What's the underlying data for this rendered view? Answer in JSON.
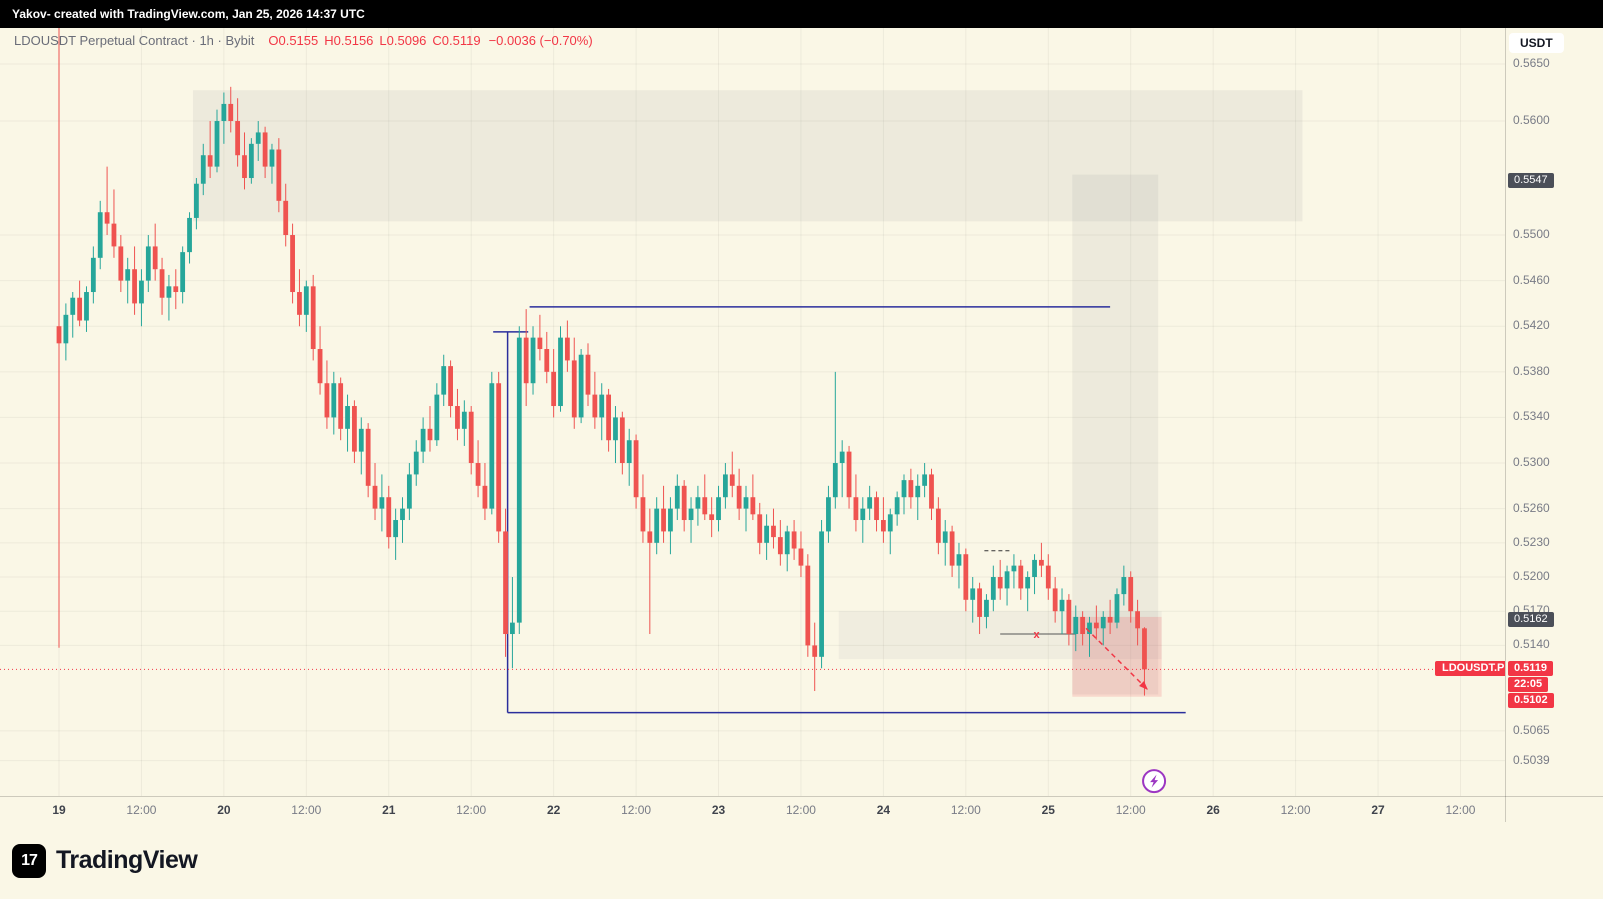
{
  "topbar": {
    "text": "Yakov- created with TradingView.com, Jan 25, 2026 14:37 UTC"
  },
  "legend": {
    "symbol_line": "LDOUSDT Perpetual Contract · 1h · Bybit",
    "o_label": "O",
    "o_value": "0.5155",
    "h_label": "H",
    "h_value": "0.5156",
    "l_label": "L",
    "l_value": "0.5096",
    "c_label": "C",
    "c_value": "0.5119",
    "change": "−0.0036 (−0.70%)"
  },
  "axis": {
    "currency": "USDT",
    "symbol_label": "LDOUSDT.P",
    "countdown": "22:05"
  },
  "footer": {
    "brand": "TradingView",
    "logo_glyph": "17"
  },
  "colors": {
    "background": "#faf7e6",
    "topbar_bg": "#000000",
    "up": "#26a69a",
    "down": "#ef5350",
    "accent_red": "#f23645",
    "blue_line": "#2a2e9c",
    "axis_text": "#787b86",
    "dark_badge_bg": "#4b4f58",
    "text_dark": "#131722",
    "purple": "#9c36c2",
    "grid": "rgba(0,0,0,0.05)"
  },
  "chart_data": {
    "type": "candlestick",
    "symbol": "LDOUSDT",
    "exchange": "Bybit",
    "interval": "1h",
    "price_range_visible": [
      0.5039,
      0.565
    ],
    "time_ticks": [
      "19",
      "12:00",
      "20",
      "12:00",
      "21",
      "12:00",
      "22",
      "12:00",
      "23",
      "12:00",
      "24",
      "12:00",
      "25",
      "12:00",
      "26",
      "12:00",
      "27",
      "12:00"
    ],
    "price_ticks": [
      0.565,
      0.56,
      0.55,
      0.546,
      0.542,
      0.538,
      0.534,
      0.53,
      0.526,
      0.523,
      0.52,
      0.517,
      0.514,
      0.5065,
      0.5039
    ],
    "badge_ticks": [
      0.5547,
      0.5162
    ],
    "last_price": 0.5119,
    "alert_price": 0.5102,
    "candles": [
      [
        0.542,
        0.569,
        0.5138,
        0.5405
      ],
      [
        0.5405,
        0.544,
        0.539,
        0.543
      ],
      [
        0.543,
        0.545,
        0.541,
        0.5445
      ],
      [
        0.5445,
        0.546,
        0.542,
        0.5425
      ],
      [
        0.5425,
        0.5455,
        0.5415,
        0.545
      ],
      [
        0.545,
        0.549,
        0.544,
        0.548
      ],
      [
        0.548,
        0.553,
        0.547,
        0.552
      ],
      [
        0.552,
        0.556,
        0.55,
        0.551
      ],
      [
        0.551,
        0.554,
        0.548,
        0.549
      ],
      [
        0.549,
        0.55,
        0.545,
        0.546
      ],
      [
        0.546,
        0.548,
        0.544,
        0.547
      ],
      [
        0.547,
        0.549,
        0.543,
        0.544
      ],
      [
        0.544,
        0.547,
        0.542,
        0.546
      ],
      [
        0.546,
        0.55,
        0.545,
        0.549
      ],
      [
        0.549,
        0.551,
        0.546,
        0.547
      ],
      [
        0.547,
        0.548,
        0.543,
        0.5445
      ],
      [
        0.5445,
        0.5465,
        0.5425,
        0.5455
      ],
      [
        0.5455,
        0.547,
        0.5435,
        0.545
      ],
      [
        0.545,
        0.549,
        0.544,
        0.5485
      ],
      [
        0.5485,
        0.552,
        0.5475,
        0.5515
      ],
      [
        0.5515,
        0.555,
        0.5505,
        0.5545
      ],
      [
        0.5545,
        0.558,
        0.5535,
        0.557
      ],
      [
        0.557,
        0.56,
        0.555,
        0.556
      ],
      [
        0.556,
        0.561,
        0.5555,
        0.56
      ],
      [
        0.56,
        0.5625,
        0.558,
        0.5615
      ],
      [
        0.5615,
        0.563,
        0.559,
        0.56
      ],
      [
        0.56,
        0.562,
        0.556,
        0.557
      ],
      [
        0.557,
        0.559,
        0.554,
        0.555
      ],
      [
        0.555,
        0.5585,
        0.5545,
        0.558
      ],
      [
        0.558,
        0.56,
        0.5565,
        0.559
      ],
      [
        0.559,
        0.5595,
        0.555,
        0.556
      ],
      [
        0.556,
        0.558,
        0.5545,
        0.5575
      ],
      [
        0.5575,
        0.5585,
        0.552,
        0.553
      ],
      [
        0.553,
        0.5545,
        0.549,
        0.55
      ],
      [
        0.55,
        0.551,
        0.544,
        0.545
      ],
      [
        0.545,
        0.547,
        0.542,
        0.543
      ],
      [
        0.543,
        0.546,
        0.5415,
        0.5455
      ],
      [
        0.5455,
        0.5465,
        0.539,
        0.54
      ],
      [
        0.54,
        0.542,
        0.536,
        0.537
      ],
      [
        0.537,
        0.539,
        0.533,
        0.534
      ],
      [
        0.534,
        0.538,
        0.5325,
        0.537
      ],
      [
        0.537,
        0.5375,
        0.532,
        0.533
      ],
      [
        0.533,
        0.536,
        0.531,
        0.535
      ],
      [
        0.535,
        0.5355,
        0.53,
        0.531
      ],
      [
        0.531,
        0.534,
        0.529,
        0.533
      ],
      [
        0.533,
        0.5335,
        0.527,
        0.528
      ],
      [
        0.528,
        0.53,
        0.525,
        0.526
      ],
      [
        0.526,
        0.529,
        0.524,
        0.527
      ],
      [
        0.527,
        0.528,
        0.5225,
        0.5235
      ],
      [
        0.5235,
        0.526,
        0.5215,
        0.525
      ],
      [
        0.525,
        0.527,
        0.523,
        0.526
      ],
      [
        0.526,
        0.53,
        0.525,
        0.529
      ],
      [
        0.529,
        0.532,
        0.528,
        0.531
      ],
      [
        0.531,
        0.534,
        0.53,
        0.533
      ],
      [
        0.533,
        0.535,
        0.531,
        0.532
      ],
      [
        0.532,
        0.537,
        0.5315,
        0.536
      ],
      [
        0.536,
        0.5395,
        0.535,
        0.5385
      ],
      [
        0.5385,
        0.539,
        0.534,
        0.535
      ],
      [
        0.535,
        0.5365,
        0.532,
        0.533
      ],
      [
        0.533,
        0.5355,
        0.5315,
        0.5345
      ],
      [
        0.5345,
        0.535,
        0.529,
        0.53
      ],
      [
        0.53,
        0.532,
        0.527,
        0.528
      ],
      [
        0.528,
        0.53,
        0.525,
        0.526
      ],
      [
        0.526,
        0.538,
        0.5255,
        0.537
      ],
      [
        0.537,
        0.538,
        0.523,
        0.524
      ],
      [
        0.524,
        0.526,
        0.513,
        0.515
      ],
      [
        0.515,
        0.52,
        0.512,
        0.516
      ],
      [
        0.516,
        0.542,
        0.515,
        0.541
      ],
      [
        0.541,
        0.5435,
        0.535,
        0.537
      ],
      [
        0.537,
        0.542,
        0.536,
        0.541
      ],
      [
        0.541,
        0.543,
        0.539,
        0.54
      ],
      [
        0.54,
        0.5415,
        0.537,
        0.538
      ],
      [
        0.538,
        0.54,
        0.534,
        0.535
      ],
      [
        0.535,
        0.542,
        0.5345,
        0.541
      ],
      [
        0.541,
        0.5425,
        0.538,
        0.539
      ],
      [
        0.539,
        0.541,
        0.533,
        0.534
      ],
      [
        0.534,
        0.54,
        0.5335,
        0.5395
      ],
      [
        0.5395,
        0.5405,
        0.535,
        0.536
      ],
      [
        0.536,
        0.538,
        0.533,
        0.534
      ],
      [
        0.534,
        0.537,
        0.532,
        0.536
      ],
      [
        0.536,
        0.5365,
        0.531,
        0.532
      ],
      [
        0.532,
        0.535,
        0.53,
        0.534
      ],
      [
        0.534,
        0.5345,
        0.529,
        0.53
      ],
      [
        0.53,
        0.533,
        0.528,
        0.532
      ],
      [
        0.532,
        0.5325,
        0.526,
        0.527
      ],
      [
        0.527,
        0.529,
        0.523,
        0.524
      ],
      [
        0.524,
        0.526,
        0.515,
        0.523
      ],
      [
        0.523,
        0.527,
        0.522,
        0.526
      ],
      [
        0.526,
        0.528,
        0.523,
        0.524
      ],
      [
        0.524,
        0.527,
        0.522,
        0.526
      ],
      [
        0.526,
        0.529,
        0.525,
        0.528
      ],
      [
        0.528,
        0.5285,
        0.524,
        0.525
      ],
      [
        0.525,
        0.527,
        0.523,
        0.526
      ],
      [
        0.526,
        0.528,
        0.5245,
        0.527
      ],
      [
        0.527,
        0.529,
        0.525,
        0.5255
      ],
      [
        0.5255,
        0.527,
        0.5235,
        0.525
      ],
      [
        0.525,
        0.528,
        0.524,
        0.527
      ],
      [
        0.527,
        0.53,
        0.526,
        0.529
      ],
      [
        0.529,
        0.531,
        0.527,
        0.528
      ],
      [
        0.528,
        0.5295,
        0.525,
        0.526
      ],
      [
        0.526,
        0.528,
        0.524,
        0.527
      ],
      [
        0.527,
        0.529,
        0.525,
        0.5255
      ],
      [
        0.5255,
        0.5265,
        0.522,
        0.523
      ],
      [
        0.523,
        0.5255,
        0.5215,
        0.5245
      ],
      [
        0.5245,
        0.526,
        0.5225,
        0.5235
      ],
      [
        0.5235,
        0.525,
        0.521,
        0.522
      ],
      [
        0.522,
        0.5245,
        0.5205,
        0.524
      ],
      [
        0.524,
        0.525,
        0.5215,
        0.5225
      ],
      [
        0.5225,
        0.524,
        0.52,
        0.521
      ],
      [
        0.521,
        0.522,
        0.513,
        0.514
      ],
      [
        0.514,
        0.516,
        0.51,
        0.513
      ],
      [
        0.513,
        0.525,
        0.512,
        0.524
      ],
      [
        0.524,
        0.528,
        0.523,
        0.527
      ],
      [
        0.527,
        0.538,
        0.526,
        0.53
      ],
      [
        0.53,
        0.532,
        0.527,
        0.531
      ],
      [
        0.531,
        0.5315,
        0.526,
        0.527
      ],
      [
        0.527,
        0.529,
        0.524,
        0.525
      ],
      [
        0.525,
        0.527,
        0.523,
        0.526
      ],
      [
        0.526,
        0.528,
        0.525,
        0.527
      ],
      [
        0.527,
        0.5275,
        0.524,
        0.525
      ],
      [
        0.525,
        0.527,
        0.523,
        0.524
      ],
      [
        0.524,
        0.526,
        0.522,
        0.5255
      ],
      [
        0.5255,
        0.5275,
        0.5245,
        0.527
      ],
      [
        0.527,
        0.529,
        0.5255,
        0.5285
      ],
      [
        0.5285,
        0.5295,
        0.526,
        0.527
      ],
      [
        0.527,
        0.529,
        0.525,
        0.528
      ],
      [
        0.528,
        0.53,
        0.527,
        0.529
      ],
      [
        0.529,
        0.5295,
        0.525,
        0.526
      ],
      [
        0.526,
        0.527,
        0.522,
        0.523
      ],
      [
        0.523,
        0.525,
        0.521,
        0.524
      ],
      [
        0.524,
        0.5245,
        0.52,
        0.521
      ],
      [
        0.521,
        0.523,
        0.519,
        0.522
      ],
      [
        0.522,
        0.5225,
        0.517,
        0.518
      ],
      [
        0.518,
        0.52,
        0.516,
        0.519
      ],
      [
        0.519,
        0.5195,
        0.515,
        0.5165
      ],
      [
        0.5165,
        0.5185,
        0.5155,
        0.518
      ],
      [
        0.518,
        0.521,
        0.517,
        0.52
      ],
      [
        0.52,
        0.5215,
        0.518,
        0.519
      ],
      [
        0.519,
        0.521,
        0.5175,
        0.5205
      ],
      [
        0.5205,
        0.522,
        0.519,
        0.521
      ],
      [
        0.521,
        0.5215,
        0.518,
        0.519
      ],
      [
        0.519,
        0.5205,
        0.517,
        0.52
      ],
      [
        0.52,
        0.522,
        0.5185,
        0.5215
      ],
      [
        0.5215,
        0.523,
        0.52,
        0.521
      ],
      [
        0.521,
        0.522,
        0.518,
        0.519
      ],
      [
        0.519,
        0.52,
        0.516,
        0.517
      ],
      [
        0.517,
        0.519,
        0.515,
        0.518
      ],
      [
        0.518,
        0.5185,
        0.514,
        0.515
      ],
      [
        0.515,
        0.5175,
        0.5135,
        0.5165
      ],
      [
        0.5165,
        0.517,
        0.514,
        0.515
      ],
      [
        0.515,
        0.5165,
        0.513,
        0.516
      ],
      [
        0.516,
        0.5175,
        0.5145,
        0.5155
      ],
      [
        0.5155,
        0.517,
        0.514,
        0.5165
      ],
      [
        0.5165,
        0.518,
        0.515,
        0.516
      ],
      [
        0.516,
        0.519,
        0.5155,
        0.5185
      ],
      [
        0.5185,
        0.521,
        0.5175,
        0.52
      ],
      [
        0.52,
        0.5205,
        0.516,
        0.517
      ],
      [
        0.517,
        0.518,
        0.514,
        0.5155
      ],
      [
        0.5155,
        0.5156,
        0.5096,
        0.5119
      ]
    ],
    "drawings": {
      "zones": [
        {
          "name": "upper-supply-zone",
          "from_idx": 19.5,
          "to_idx": 181,
          "top": 0.5627,
          "bottom": 0.5512,
          "fill": "rgba(128,128,134,0.10)"
        },
        {
          "name": "right-projection-zone",
          "from_idx": 147.5,
          "to_idx": 160,
          "top": 0.5553,
          "bottom": 0.5097,
          "fill": "rgba(128,128,134,0.10)"
        },
        {
          "name": "demand-band",
          "from_idx": 113.5,
          "to_idx": 160.5,
          "top": 0.517,
          "bottom": 0.5128,
          "fill": "rgba(128,128,134,0.08)"
        },
        {
          "name": "short-entry-zone",
          "from_idx": 147.5,
          "to_idx": 160.5,
          "top": 0.5165,
          "bottom": 0.5095,
          "fill": "rgba(242,54,69,0.16)"
        }
      ],
      "hlines": [
        {
          "name": "resistance-line",
          "price": 0.5437,
          "from_idx": 68.5,
          "to_idx": 153,
          "color": "#2a2e9c",
          "width": 1.5
        },
        {
          "name": "support-line",
          "price": 0.5081,
          "from_idx": 65.3,
          "to_idx": 164,
          "color": "#2a2e9c",
          "width": 1.5
        },
        {
          "name": "shelf-line",
          "price": 0.5415,
          "from_idx": 63.2,
          "to_idx": 68.3,
          "color": "#2a2e9c",
          "width": 1.5
        },
        {
          "name": "x-level-line",
          "price": 0.515,
          "from_idx": 137,
          "to_idx": 148,
          "color": "#555555",
          "width": 1
        },
        {
          "name": "dash-level",
          "price": 0.5223,
          "from_idx": 134.7,
          "to_idx": 138.5,
          "color": "#333333",
          "width": 1,
          "dash": "4 3"
        }
      ],
      "vlines": [
        {
          "name": "zone-left-edge",
          "idx": 65.3,
          "from_price": 0.5415,
          "to_price": 0.5081,
          "color": "#2a2e9c",
          "width": 1.5
        }
      ],
      "price_line": {
        "price": 0.5119,
        "color": "#f23645"
      },
      "arrow": {
        "name": "projection-arrow",
        "from_idx": 149.5,
        "from_price": 0.5155,
        "to_idx": 158.5,
        "to_price": 0.5101,
        "color": "#f23645"
      },
      "x_marker": {
        "idx": 142.3,
        "price": 0.515,
        "text": "x",
        "color": "#f23645"
      },
      "lightning": {
        "idx": 159.4,
        "price": 0.5021
      }
    }
  }
}
